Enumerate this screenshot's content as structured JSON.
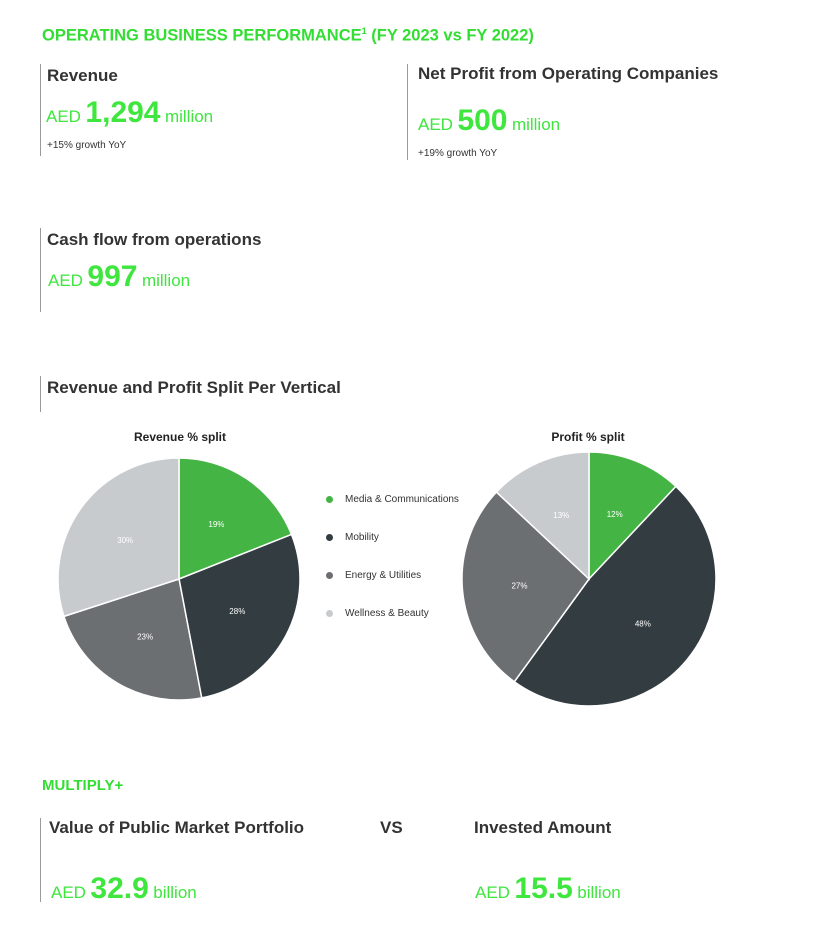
{
  "header": {
    "title": "OPERATING BUSINESS PERFORMANCE",
    "footnote": "1",
    "title_suffix": " (FY 2023 vs FY 2022)"
  },
  "kpis": {
    "revenue": {
      "label": "Revenue",
      "currency": "AED",
      "value": "1,294",
      "unit": "million",
      "growth": "+15% growth YoY"
    },
    "net_profit": {
      "label": "Net Profit from Operating Companies",
      "currency": "AED",
      "value": "500",
      "unit": "million",
      "growth": "+19% growth YoY"
    },
    "cash_flow": {
      "label": "Cash flow from operations",
      "currency": "AED",
      "value": "997",
      "unit": "million"
    }
  },
  "split_section": {
    "title": "Revenue and Profit Split Per Vertical"
  },
  "colors": {
    "Media & Communications": "#44b444",
    "Mobility": "#323c41",
    "Energy & Utilities": "#6c6f72",
    "Wellness & Beauty": "#c8cbce"
  },
  "chart_data": [
    {
      "type": "pie",
      "title": "Revenue % split",
      "categories": [
        "Media & Communications",
        "Mobility",
        "Energy & Utilities",
        "Wellness & Beauty"
      ],
      "values": [
        19,
        28,
        23,
        30
      ],
      "labels": [
        "19%",
        "28%",
        "23%",
        "30%"
      ],
      "legend": "right"
    },
    {
      "type": "pie",
      "title": "Profit % split",
      "categories": [
        "Media & Communications",
        "Mobility",
        "Energy & Utilities",
        "Wellness & Beauty"
      ],
      "values": [
        12,
        48,
        27,
        13
      ],
      "labels": [
        "12%",
        "48%",
        "27%",
        "13%"
      ],
      "legend": "left"
    }
  ],
  "multiply": {
    "title": "MULTIPLY+",
    "portfolio": {
      "label": "Value of Public Market Portfolio",
      "currency": "AED",
      "value": "32.9",
      "unit": "billion"
    },
    "vs": "VS",
    "invested": {
      "label": "Invested Amount",
      "currency": "AED",
      "value": "15.5",
      "unit": "billion"
    }
  }
}
